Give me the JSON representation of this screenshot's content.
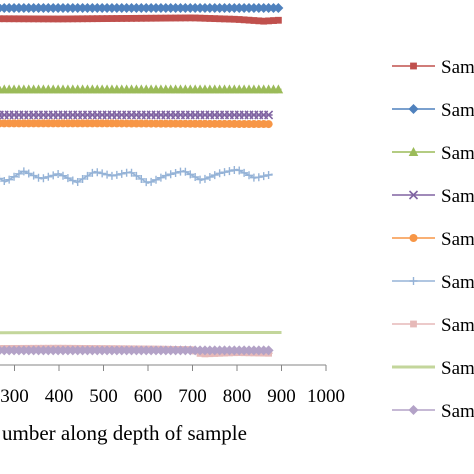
{
  "chart_data": {
    "type": "line",
    "xlabel": "umber along depth of sample",
    "xlim": [
      200,
      1000
    ],
    "x_ticks": [
      "300",
      "400",
      "500",
      "600",
      "700",
      "800",
      "900",
      "1000"
    ],
    "ylim": [
      0,
      100
    ],
    "grid": false,
    "legend_position": "right",
    "series": [
      {
        "name": "Sam",
        "color": "#C0504D",
        "marker": "square",
        "x_end": 900,
        "values": [
          [
            200,
            94.9
          ],
          [
            400,
            94.8
          ],
          [
            600,
            95.0
          ],
          [
            700,
            95.1
          ],
          [
            800,
            94.7
          ],
          [
            860,
            94.2
          ],
          [
            900,
            94.5
          ]
        ]
      },
      {
        "name": "Sam",
        "color": "#4F81BD",
        "marker": "diamond",
        "x_end": 900,
        "values": [
          [
            200,
            97.8
          ],
          [
            500,
            97.8
          ],
          [
            900,
            97.8
          ]
        ]
      },
      {
        "name": "Sam",
        "color": "#9BBB59",
        "marker": "triangle",
        "x_end": 900,
        "values": [
          [
            200,
            75.5
          ],
          [
            500,
            75.5
          ],
          [
            900,
            75.5
          ]
        ]
      },
      {
        "name": "Sam",
        "color": "#8064A2",
        "marker": "x",
        "x_end": 880,
        "values": [
          [
            200,
            68.5
          ],
          [
            500,
            68.5
          ],
          [
            880,
            68.5
          ]
        ]
      },
      {
        "name": "Sam",
        "color": "#F79646",
        "marker": "circle",
        "x_end": 880,
        "values": [
          [
            200,
            66.2
          ],
          [
            500,
            66.2
          ],
          [
            880,
            66.0
          ]
        ]
      },
      {
        "name": "Sam",
        "color": "#95B3D7",
        "marker": "plus",
        "x_end": 880,
        "values": [
          [
            200,
            51.5
          ],
          [
            240,
            52.8
          ],
          [
            280,
            50.2
          ],
          [
            320,
            53.1
          ],
          [
            360,
            51.0
          ],
          [
            400,
            52.4
          ],
          [
            440,
            50.0
          ],
          [
            480,
            53.0
          ],
          [
            520,
            51.8
          ],
          [
            560,
            52.9
          ],
          [
            600,
            49.8
          ],
          [
            640,
            51.9
          ],
          [
            680,
            53.2
          ],
          [
            720,
            50.6
          ],
          [
            760,
            52.5
          ],
          [
            800,
            53.6
          ],
          [
            840,
            51.2
          ],
          [
            880,
            52.3
          ]
        ]
      },
      {
        "name": "Sam",
        "color": "#E6B9B8",
        "marker": "square",
        "x_end": 880,
        "values": [
          [
            200,
            4.5
          ],
          [
            400,
            4.6
          ],
          [
            600,
            4.4
          ],
          [
            700,
            4.2
          ],
          [
            720,
            3.0
          ],
          [
            800,
            3.4
          ],
          [
            880,
            3.2
          ]
        ]
      },
      {
        "name": "Sam",
        "color": "#C3D69B",
        "marker": "none",
        "x_end": 900,
        "values": [
          [
            200,
            8.8
          ],
          [
            500,
            8.9
          ],
          [
            900,
            8.9
          ]
        ]
      },
      {
        "name": "Sam",
        "color": "#B3A2C7",
        "marker": "diamond",
        "x_end": 880,
        "values": [
          [
            200,
            4.0
          ],
          [
            500,
            4.0
          ],
          [
            880,
            4.0
          ]
        ]
      }
    ]
  }
}
